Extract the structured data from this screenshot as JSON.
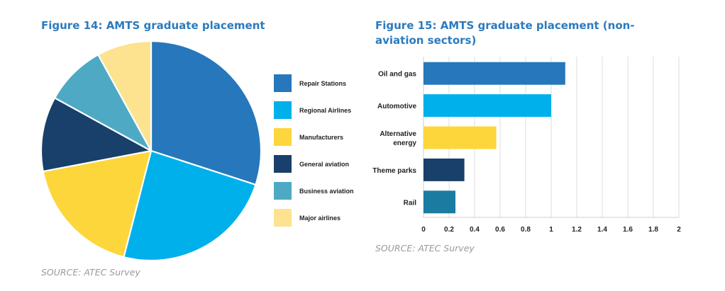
{
  "figure14": {
    "title": "Figure 14: AMTS graduate placement",
    "source": "SOURCE: ATEC Survey"
  },
  "figure15": {
    "title": "Figure 15: AMTS graduate placement (non-aviation sectors)",
    "source": "SOURCE: ATEC Survey"
  },
  "chart_data": [
    {
      "type": "pie",
      "title": "Figure 14: AMTS graduate placement",
      "start": "12 o'clock, clockwise",
      "legend_position": "right",
      "slices": [
        {
          "label": "Repair Stations",
          "value": 30,
          "color": "#2677bb"
        },
        {
          "label": "Regional Airlines",
          "value": 24,
          "color": "#00b0eb"
        },
        {
          "label": "Manufacturers",
          "value": 18,
          "color": "#fdd63b"
        },
        {
          "label": "General aviation",
          "value": 11,
          "color": "#18406a"
        },
        {
          "label": "Business aviation",
          "value": 9,
          "color": "#4eaac4"
        },
        {
          "label": "Major airlines",
          "value": 8,
          "color": "#fde28f"
        }
      ],
      "source": "SOURCE: ATEC Survey"
    },
    {
      "type": "bar",
      "orientation": "horizontal",
      "title": "Figure 15: AMTS graduate placement (non-aviation sectors)",
      "categories": [
        "Oil and gas",
        "Automotive",
        "Alternative energy",
        "Theme parks",
        "Rail"
      ],
      "category_lines": [
        [
          "Oil and gas"
        ],
        [
          "Automotive"
        ],
        [
          "Alternative",
          "energy"
        ],
        [
          "Theme parks"
        ],
        [
          "Rail"
        ]
      ],
      "values": [
        1.11,
        1.0,
        0.57,
        0.32,
        0.25
      ],
      "colors": [
        "#2677bb",
        "#00b0eb",
        "#fdd63b",
        "#18406a",
        "#1b7ba0"
      ],
      "xlabel": "",
      "ylabel": "",
      "xlim": [
        0,
        2
      ],
      "xticks": [
        0,
        0.2,
        0.4,
        0.6,
        0.8,
        1,
        1.2,
        1.4,
        1.6,
        1.8,
        2
      ],
      "xtick_labels": [
        "0",
        "0.2",
        "0.4",
        "0.6",
        "0.8",
        "1",
        "1.2",
        "1.4",
        "1.6",
        "1.8",
        "2"
      ],
      "grid": "vertical",
      "source": "SOURCE: ATEC Survey"
    }
  ]
}
